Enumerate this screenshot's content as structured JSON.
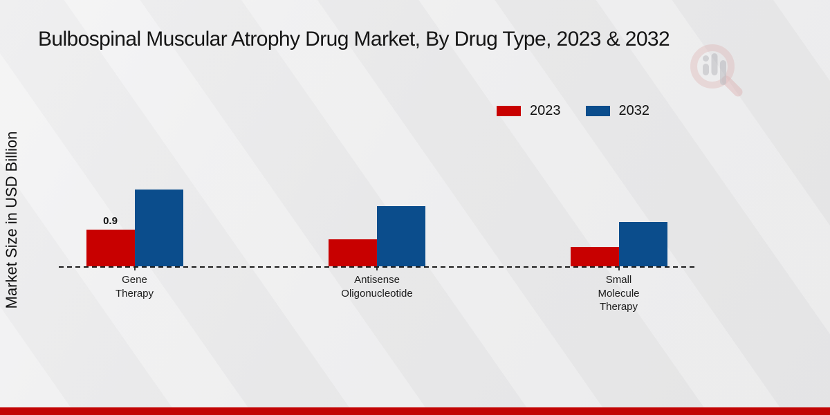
{
  "page": {
    "background_color": "#ebebec",
    "footer_bar_color": "#c20404"
  },
  "title": "Bulbospinal Muscular Atrophy Drug Market, By Drug Type, 2023 & 2032",
  "y_axis_label": "Market Size in USD Billion",
  "watermark_icon": "magnifier-bar-chart-logo",
  "chart_data": {
    "type": "bar",
    "title": "Bulbospinal Muscular Atrophy Drug Market, By Drug Type, 2023 & 2032",
    "xlabel": "",
    "ylabel": "Market Size in USD Billion",
    "categories": [
      "Gene\nTherapy",
      "Antisense\nOligonucleotide",
      "Small\nMolecule\nTherapy"
    ],
    "series": [
      {
        "name": "2023",
        "color": "#c80000",
        "values": [
          0.9,
          0.66,
          0.47
        ],
        "labels": [
          "0.9",
          "",
          ""
        ]
      },
      {
        "name": "2032",
        "color": "#0b4d8c",
        "values": [
          1.88,
          1.47,
          1.08
        ],
        "labels": [
          "",
          "",
          ""
        ]
      }
    ],
    "ylim": [
      0,
      2.2
    ],
    "grid": false,
    "baseline_style": "dashed",
    "legend_position": "top-right"
  }
}
